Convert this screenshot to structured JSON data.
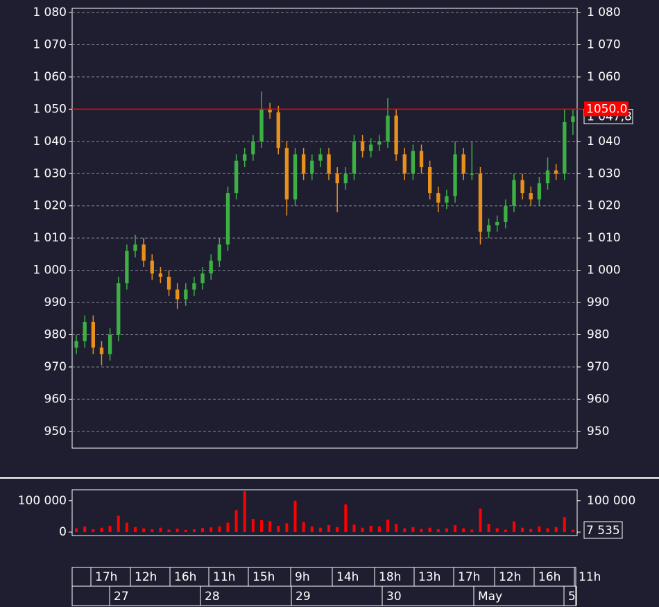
{
  "chart_data": {
    "type": "candlestick",
    "open": [
      976,
      978,
      984,
      976,
      974,
      980,
      996,
      1006,
      1008,
      1003,
      999,
      998,
      994,
      991,
      994,
      996,
      999,
      1003,
      1008,
      1024,
      1034,
      1036,
      1040,
      1050,
      1049,
      1038,
      1022,
      1036,
      1030,
      1034,
      1036,
      1030,
      1027,
      1030,
      1040,
      1037,
      1039,
      1040,
      1048,
      1036,
      1030,
      1037,
      1032,
      1024,
      1021,
      1023,
      1036,
      1030,
      1030,
      1012,
      1014,
      1015,
      1020,
      1028,
      1024,
      1022,
      1027,
      1031,
      1030,
      1046
    ],
    "high": [
      980,
      986,
      986,
      978,
      982,
      998,
      1008,
      1011,
      1010,
      1005,
      1001,
      1000,
      996,
      996,
      998,
      1001,
      1005,
      1010,
      1026,
      1036,
      1038,
      1042,
      1055.5,
      1052,
      1051,
      1040,
      1038,
      1038,
      1036,
      1038,
      1038,
      1032,
      1032,
      1042,
      1042,
      1041,
      1042,
      1053.5,
      1050,
      1038,
      1039,
      1039,
      1034,
      1026,
      1025,
      1040,
      1038,
      1040,
      1032,
      1016,
      1017,
      1022,
      1030,
      1030,
      1026,
      1029,
      1035,
      1033,
      1050,
      1050
    ],
    "low": [
      974,
      976,
      974,
      970.5,
      972,
      978,
      994,
      1004,
      1001,
      997,
      996,
      992,
      988,
      989,
      992,
      994,
      997,
      1001,
      1006,
      1022,
      1032,
      1034,
      1038,
      1047,
      1036,
      1017,
      1020,
      1028,
      1028,
      1032,
      1028,
      1018,
      1025,
      1028,
      1035,
      1035,
      1037,
      1038,
      1034,
      1028,
      1028,
      1030,
      1022,
      1018,
      1019,
      1021,
      1028,
      1028,
      1008,
      1010,
      1012,
      1013,
      1018,
      1022,
      1020,
      1020,
      1025,
      1028,
      1028,
      1042
    ],
    "close": [
      978,
      984,
      976,
      974,
      980,
      996,
      1006,
      1008,
      1003,
      999,
      998,
      994,
      991,
      994,
      996,
      999,
      1003,
      1008,
      1024,
      1034,
      1036,
      1040,
      1050,
      1049,
      1038,
      1022,
      1036,
      1030,
      1034,
      1036,
      1030,
      1027,
      1030,
      1040,
      1037,
      1039,
      1040,
      1048,
      1036,
      1030,
      1037,
      1032,
      1024,
      1021,
      1023,
      1036,
      1030,
      1030,
      1012,
      1014,
      1015,
      1020,
      1028,
      1024,
      1022,
      1027,
      1031,
      1030,
      1046,
      1047.8
    ],
    "up_color": "#3cb043",
    "down_color": "#e8901c",
    "ylim": [
      944.8,
      1081.3
    ],
    "yticks": [
      {
        "value": 950,
        "label": "950"
      },
      960,
      970,
      980,
      990,
      {
        "value": 1000,
        "label": "1 000"
      },
      {
        "value": 1010,
        "label": "1 010"
      },
      {
        "value": 1020,
        "label": "1 020"
      },
      {
        "value": 1030,
        "label": "1 030"
      },
      {
        "value": 1040,
        "label": "1 040"
      },
      {
        "value": 1050,
        "label": "1 050"
      },
      {
        "value": 1060,
        "label": "1 060"
      },
      {
        "value": 1070,
        "label": "1 070"
      },
      {
        "value": 1080,
        "label": "1 080"
      }
    ],
    "grid": true,
    "level": {
      "value": 1050,
      "label": "1050.0",
      "color": "#ff0000"
    },
    "last_price": {
      "value": 1047.8,
      "label": "1 047,8"
    },
    "volume": {
      "type": "bar",
      "color": "#ff0000",
      "values": [
        12000,
        18000,
        9000,
        14000,
        20000,
        52000,
        30000,
        16000,
        12000,
        9000,
        14000,
        8000,
        11000,
        7000,
        9000,
        13000,
        15000,
        18000,
        30000,
        70000,
        130000,
        42000,
        38000,
        35000,
        20000,
        28000,
        100000,
        32000,
        18000,
        14000,
        22000,
        16000,
        88000,
        24000,
        14000,
        20000,
        18000,
        40000,
        26000,
        12000,
        16000,
        10000,
        14000,
        9000,
        12000,
        22000,
        12000,
        8000,
        75000,
        26000,
        12000,
        8000,
        34000,
        14000,
        10000,
        18000,
        12000,
        16000,
        48000,
        7535
      ],
      "ylim": [
        -11000,
        135000
      ],
      "yticks": [
        0,
        {
          "value": 100000,
          "label": "100 000"
        }
      ],
      "last": {
        "value": 7535,
        "label": "7 535"
      }
    },
    "time_axis": {
      "hours": [
        "17h",
        "12h",
        "16h",
        "11h",
        "15h",
        "9h",
        "14h",
        "18h",
        "13h",
        "17h",
        "12h",
        "16h",
        "11h"
      ],
      "days": [
        "27",
        "28",
        "29",
        "30",
        "May",
        "5"
      ]
    }
  }
}
